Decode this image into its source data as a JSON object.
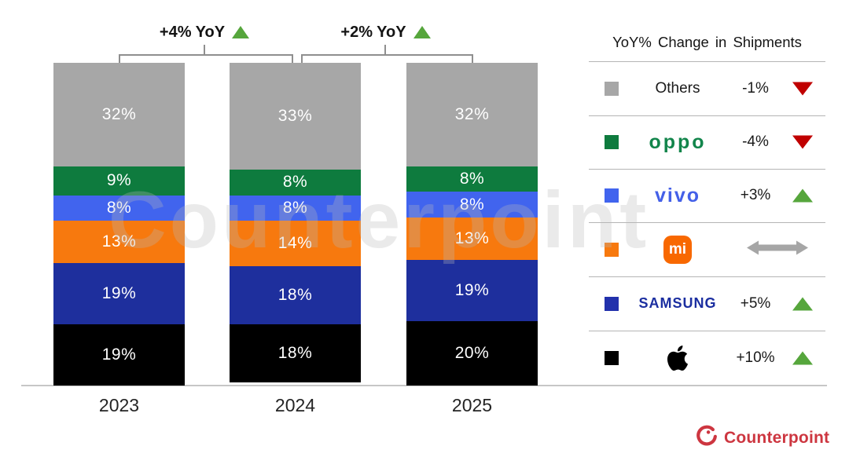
{
  "watermark": {
    "text": "Counterpoint"
  },
  "chart_data": {
    "type": "stacked-bar",
    "categories": [
      "2023",
      "2024",
      "2025"
    ],
    "value_suffix": "%",
    "stack_order_top_to_bottom": [
      "Others",
      "OPPO",
      "vivo",
      "Xiaomi",
      "Samsung",
      "Apple"
    ],
    "series": [
      {
        "name": "Others",
        "color": "#a7a7a7",
        "values": [
          32,
          33,
          32
        ]
      },
      {
        "name": "OPPO",
        "color": "#0e7b3e",
        "values": [
          9,
          8,
          8
        ]
      },
      {
        "name": "vivo",
        "color": "#4164ee",
        "values": [
          8,
          8,
          8
        ]
      },
      {
        "name": "Xiaomi",
        "color": "#f7790e",
        "values": [
          13,
          14,
          13
        ]
      },
      {
        "name": "Samsung",
        "color": "#1e2f9d",
        "values": [
          19,
          18,
          19
        ]
      },
      {
        "name": "Apple",
        "color": "#000000",
        "values": [
          19,
          18,
          20
        ]
      }
    ],
    "annotations": [
      {
        "label": "+4% YoY",
        "between": [
          "2023",
          "2024"
        ],
        "direction": "up"
      },
      {
        "label": "+2% YoY",
        "between": [
          "2024",
          "2025"
        ],
        "direction": "up"
      }
    ],
    "ylim": [
      0,
      100
    ],
    "grid": false,
    "legend_position": "right"
  },
  "legend": {
    "title": "YoY% Change in Shipments",
    "rows": [
      {
        "brand": "Others",
        "logo_text": "Others",
        "swatch": "#a7a7a7",
        "change": "-1%",
        "direction": "down",
        "tri_class": "ltri tri-down"
      },
      {
        "brand": "OPPO",
        "logo_text": "oppo",
        "swatch": "#0e7b3e",
        "change": "-4%",
        "direction": "down",
        "tri_class": "ltri tri-down"
      },
      {
        "brand": "vivo",
        "logo_text": "vivo",
        "swatch": "#4164ee",
        "change": "+3%",
        "direction": "up",
        "tri_class": "ltri tri-up"
      },
      {
        "brand": "Xiaomi",
        "logo_text": "mi",
        "swatch": "#f7790e",
        "change": "",
        "direction": "flat"
      },
      {
        "brand": "Samsung",
        "logo_text": "SAMSUNG",
        "swatch": "#2231ac",
        "change": "+5%",
        "direction": "up",
        "tri_class": "ltri tri-up"
      },
      {
        "brand": "Apple",
        "logo_text": "",
        "swatch": "#000000",
        "change": "+10%",
        "direction": "up",
        "tri_class": "ltri tri-up"
      }
    ]
  },
  "footer": {
    "brand": "Counterpoint"
  },
  "colors": {
    "up_green": "#56a63c",
    "down_red": "#c00000",
    "flat_gray": "#a6a6a6",
    "axis_gray": "#c6c6c6",
    "separator_gray": "#b5b5b5",
    "bracket_gray": "#8f8f8f",
    "counterpoint_red": "#cd3640",
    "oppo_green": "#12854b",
    "vivo_blue": "#4460e8",
    "samsung_navy": "#1b2ea0",
    "mi_orange": "#f86800"
  }
}
